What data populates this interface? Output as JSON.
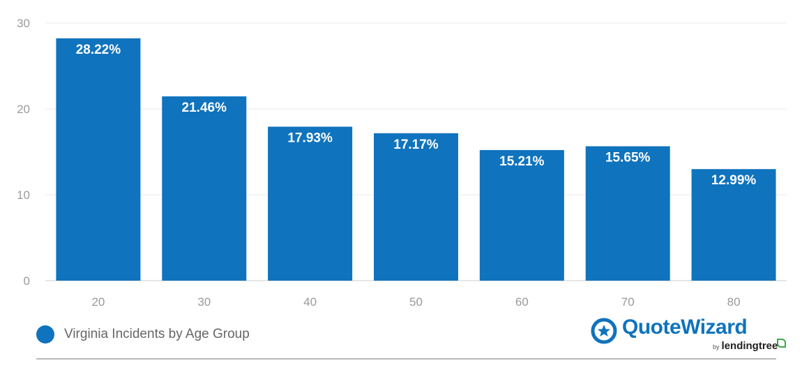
{
  "chart_data": {
    "type": "bar",
    "categories": [
      "20",
      "30",
      "40",
      "50",
      "60",
      "70",
      "80"
    ],
    "series": [
      {
        "name": "Virginia Incidents by Age Group",
        "values": [
          28.22,
          21.46,
          17.93,
          17.17,
          15.21,
          15.65,
          12.99
        ],
        "labels": [
          "28.22%",
          "21.46%",
          "17.93%",
          "17.17%",
          "15.21%",
          "15.65%",
          "12.99%"
        ]
      }
    ],
    "yticks": [
      "0",
      "10",
      "20",
      "30"
    ],
    "ylim": [
      0,
      30
    ],
    "grid": true,
    "legend_position": "bottom-left",
    "bar_color": "#0f73bd"
  },
  "legend": {
    "label": "Virginia Incidents by Age Group"
  },
  "brand": {
    "name": "QuoteWizard",
    "by": "by",
    "sub": "lendingtree",
    "color": "#0f73bd"
  }
}
